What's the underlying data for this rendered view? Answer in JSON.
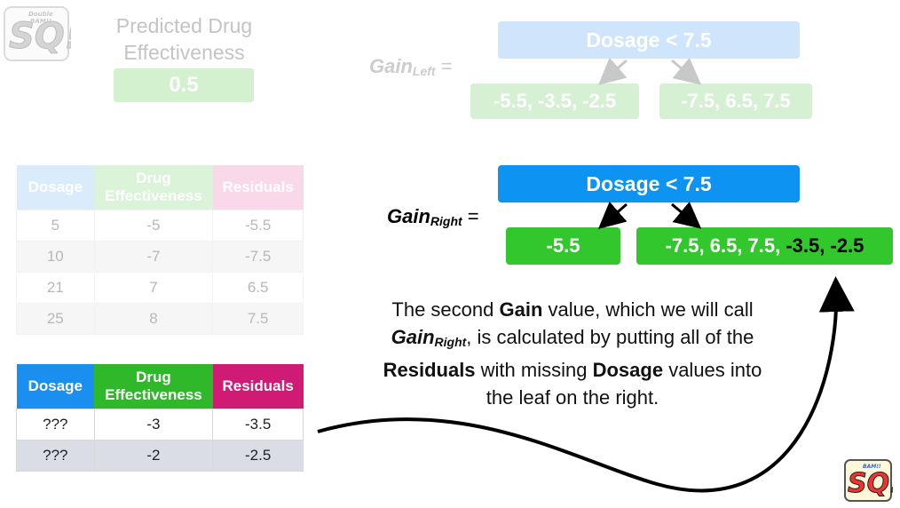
{
  "logo": {
    "text": "SQ!",
    "banner": "Double BAM!!"
  },
  "top_panel": {
    "title_line1": "Predicted Drug",
    "title_line2": "Effectiveness",
    "value": "0.5"
  },
  "gain_left": {
    "label": "Gain",
    "sub": "Left",
    "eq": "=",
    "root": "Dosage < 7.5",
    "leaf_left": "-5.5, -3.5, -2.5",
    "leaf_right": "-7.5, 6.5, 7.5"
  },
  "gain_right": {
    "label": "Gain",
    "sub": "Right",
    "eq": "=",
    "root": "Dosage < 7.5",
    "leaf_left": "-5.5",
    "leaf_right_white": "-7.5, 6.5, 7.5,",
    "leaf_right_black": "-3.5, -2.5"
  },
  "table_known": {
    "headers": [
      "Dosage",
      "Drug Effectiveness",
      "Residuals"
    ],
    "rows": [
      [
        "5",
        "-5",
        "-5.5"
      ],
      [
        "10",
        "-7",
        "-7.5"
      ],
      [
        "21",
        "7",
        "6.5"
      ],
      [
        "25",
        "8",
        "7.5"
      ]
    ]
  },
  "table_missing": {
    "headers": [
      "Dosage",
      "Drug Effectiveness",
      "Residuals"
    ],
    "rows": [
      [
        "???",
        "-3",
        "-3.5"
      ],
      [
        "???",
        "-2",
        "-2.5"
      ]
    ]
  },
  "explanation": {
    "p1": "The second ",
    "b1": "Gain",
    "p2": " value, which we will call ",
    "i1": "Gain",
    "i1sub": "Right",
    "p3": ", is calculated by putting all of the ",
    "b2": "Residuals",
    "p4": " with missing ",
    "b3": "Dosage",
    "p5": " values into the leaf on the right."
  },
  "colors": {
    "blue": "#0d94f2",
    "green": "#33c72e",
    "magenta": "#cf1b73"
  }
}
